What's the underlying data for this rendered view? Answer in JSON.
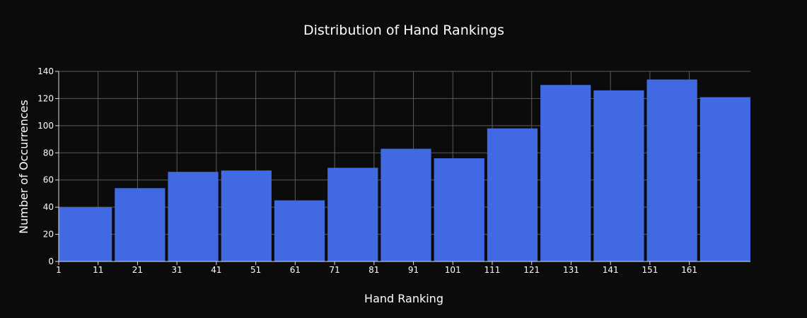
{
  "chart_data": {
    "type": "bar",
    "title": "Distribution of Hand Rankings",
    "xlabel": "Hand Ranking",
    "ylabel": "Number of Occurrences",
    "bins": [
      {
        "start": 1,
        "end": 14.5,
        "value": 40
      },
      {
        "start": 14.5,
        "end": 28,
        "value": 54
      },
      {
        "start": 28,
        "end": 41.5,
        "value": 66
      },
      {
        "start": 41.5,
        "end": 55,
        "value": 67
      },
      {
        "start": 55,
        "end": 68.5,
        "value": 45
      },
      {
        "start": 68.5,
        "end": 82,
        "value": 69
      },
      {
        "start": 82,
        "end": 95.5,
        "value": 83
      },
      {
        "start": 95.5,
        "end": 109,
        "value": 76
      },
      {
        "start": 109,
        "end": 122.5,
        "value": 98
      },
      {
        "start": 122.5,
        "end": 136,
        "value": 130
      },
      {
        "start": 136,
        "end": 149.5,
        "value": 126
      },
      {
        "start": 149.5,
        "end": 163,
        "value": 134
      },
      {
        "start": 163,
        "end": 176.5,
        "value": 121
      }
    ],
    "xlim": [
      1,
      176.5
    ],
    "ylim": [
      0,
      140
    ],
    "xticks": [
      1,
      11,
      21,
      31,
      41,
      51,
      61,
      71,
      81,
      91,
      101,
      111,
      121,
      131,
      141,
      151,
      161
    ],
    "yticks": [
      0,
      20,
      40,
      60,
      80,
      100,
      120,
      140
    ],
    "grid": true,
    "colors": {
      "background": "#0b0b0b",
      "bar": "#4169e1",
      "grid": "#5a5a5a",
      "text": "#ffffff"
    }
  }
}
